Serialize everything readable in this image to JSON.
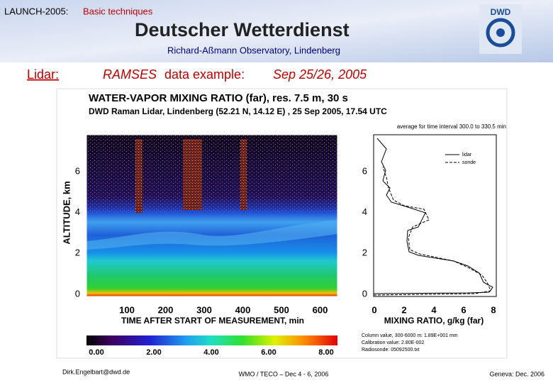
{
  "header": {
    "workshop": "LAUNCH-2005:",
    "topic": "Basic techniques",
    "org": "Deutscher Wetterdienst",
    "observatory": "Richard-Aßmann Observatory, Lindenberg",
    "logo": "DWD"
  },
  "slide": {
    "label": "Lidar:",
    "title_italic": "RAMSES",
    "title_rest": "data example:",
    "date": "Sep 25/26, 2005"
  },
  "figure": {
    "title": "WATER-VAPOR MIXING RATIO (far), res. 7.5 m, 30 s",
    "subtitle": "DWD Raman Lidar, Lindenberg (52.21 N, 14.12 E) , 25 Sep 2005, 17.54 UTC",
    "average": "average for time interval 300.0 to 330.5 min",
    "y_label": "ALTITUDE, km",
    "y_ticks": [
      "0",
      "2",
      "4",
      "6"
    ],
    "x_ticks": [
      "100",
      "200",
      "300",
      "400",
      "500",
      "600"
    ],
    "x_label": "TIME AFTER START OF MEASUREMENT, min",
    "profile_y_ticks": [
      "0",
      "2",
      "4",
      "6"
    ],
    "profile_x_ticks": [
      "0",
      "2",
      "4",
      "6",
      "8"
    ],
    "profile_x_label": "MIXING RATIO, g/kg (far)",
    "legend": [
      "lidar",
      "sonde"
    ],
    "colorbar_ticks": [
      "0.00",
      "2.00",
      "4.00",
      "6.00",
      "8.00"
    ],
    "notes": [
      "Column value, 300-6000 m: 1.89E+001 mm",
      "Calibration value: 2.80E-002",
      "Radiosonde: 05092500.txt"
    ]
  },
  "footer": {
    "email": "Dirk.Engelbart@dwd.de",
    "event": "WMO / TECO  –  Dec 4 - 6, 2006",
    "venue": "Geneva:  Dec. 2006"
  }
}
